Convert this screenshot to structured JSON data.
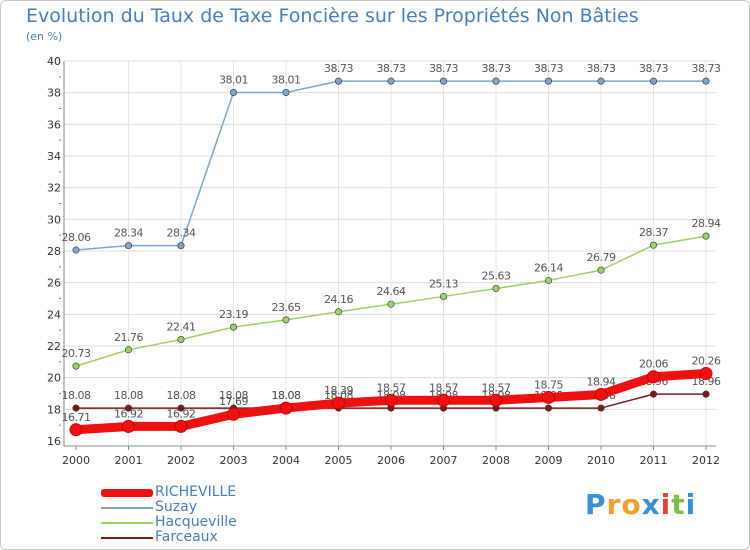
{
  "chart_data": {
    "type": "line",
    "title": "Evolution du Taux de Taxe Foncière sur les Propriétés Non Bâties",
    "subtitle": "(en %)",
    "xlabel": "",
    "ylabel": "",
    "ylim": [
      16,
      40
    ],
    "yticks": [
      "16",
      "18",
      "20",
      "22",
      "24",
      "26",
      "28",
      "30",
      "32",
      "34",
      "36",
      "38",
      "40"
    ],
    "categories": [
      "2000",
      "2001",
      "2002",
      "2003",
      "2004",
      "2005",
      "2006",
      "2007",
      "2008",
      "2009",
      "2010",
      "2011",
      "2012"
    ],
    "grid": true,
    "legend_position": "bottom-left",
    "series": [
      {
        "name": "Farceaux",
        "color": "#7a1a1a",
        "values": [
          18.08,
          18.08,
          18.08,
          18.08,
          18.08,
          18.08,
          18.08,
          18.08,
          18.08,
          18.08,
          18.08,
          18.96,
          18.96
        ],
        "labels": [
          "18.08",
          "18.08",
          "18.08",
          "18.08",
          "18.08",
          "18.08",
          "18.08",
          "18.08",
          "18.08",
          "18.08",
          "18.08",
          "18.96",
          "18.96"
        ]
      },
      {
        "name": "Hacqueville",
        "color": "#9ed16b",
        "values": [
          20.73,
          21.76,
          22.41,
          23.19,
          23.65,
          24.16,
          24.64,
          25.13,
          25.63,
          26.14,
          26.79,
          28.37,
          28.94
        ],
        "labels": [
          "20.73",
          "21.76",
          "22.41",
          "23.19",
          "23.65",
          "24.16",
          "24.64",
          "25.13",
          "25.63",
          "26.14",
          "26.79",
          "28.37",
          "28.94"
        ]
      },
      {
        "name": "Suzay",
        "color": "#7ea7cf",
        "values": [
          28.06,
          28.34,
          28.34,
          38.01,
          38.01,
          38.73,
          38.73,
          38.73,
          38.73,
          38.73,
          38.73,
          38.73,
          38.73
        ],
        "labels": [
          "28.06",
          "28.34",
          "28.34",
          "38.01",
          "38.01",
          "38.73",
          "38.73",
          "38.73",
          "38.73",
          "38.73",
          "38.73",
          "38.73",
          "38.73"
        ]
      },
      {
        "name": "RICHEVILLE",
        "color": "#ee1111",
        "values": [
          16.71,
          16.92,
          16.92,
          17.69,
          18.08,
          18.39,
          18.57,
          18.57,
          18.57,
          18.75,
          18.94,
          20.06,
          20.26
        ],
        "labels": [
          "16.71",
          "16.92",
          "16.92",
          "17.69",
          "18.08",
          "18.39",
          "18.57",
          "18.57",
          "18.57",
          "18.75",
          "18.94",
          "20.06",
          "20.26"
        ]
      }
    ],
    "legend": [
      "RICHEVILLE",
      "Suzay",
      "Hacqueville",
      "Farceaux"
    ]
  },
  "legend_colors": {
    "RICHEVILLE": "#ee1111",
    "Suzay": "#7ea7cf",
    "Hacqueville": "#9ed16b",
    "Farceaux": "#7a1a1a"
  },
  "logo": {
    "letters": [
      "P",
      "r",
      "o",
      "x",
      "i",
      "t",
      "i"
    ],
    "colors": [
      "#3a8fd6",
      "#f0a030",
      "#f0a030",
      "#3a8fd6",
      "#e04040",
      "#7cc242",
      "#3a8fd6"
    ]
  }
}
